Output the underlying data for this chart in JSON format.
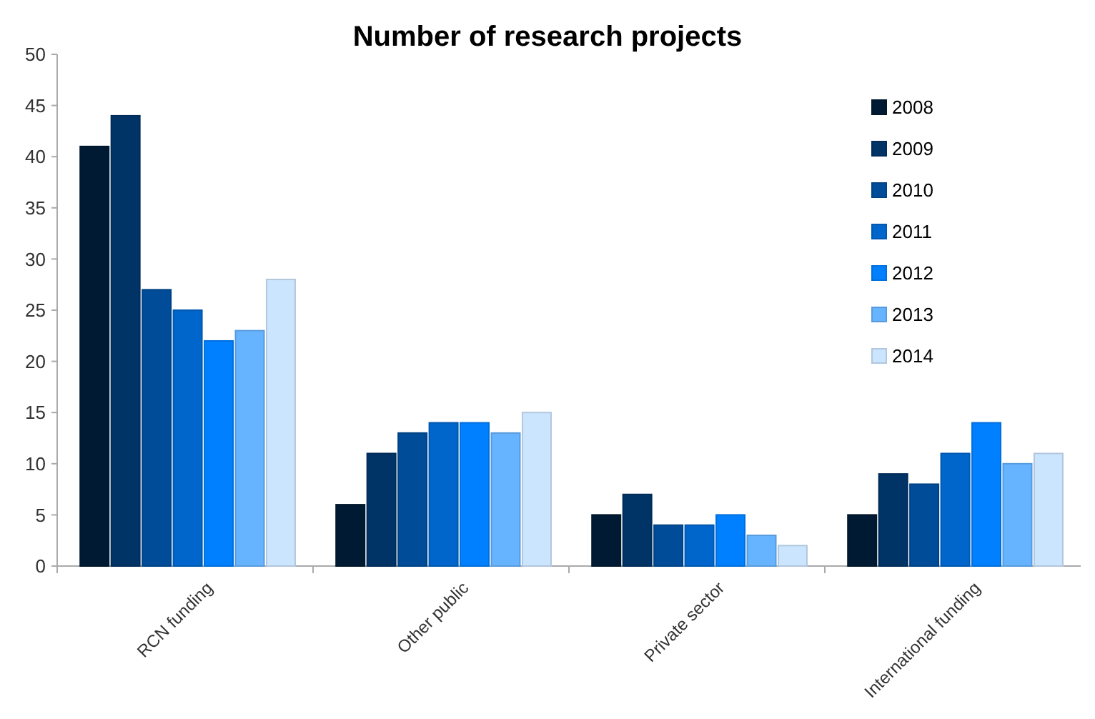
{
  "chart_data": {
    "type": "bar",
    "title": "Number of research projects",
    "categories": [
      "RCN funding",
      "Other public",
      "Private sector",
      "International funding"
    ],
    "series": [
      {
        "name": "2008",
        "color": "#001a33",
        "values": [
          41,
          6,
          5,
          5
        ]
      },
      {
        "name": "2009",
        "color": "#003366",
        "values": [
          44,
          11,
          7,
          9
        ]
      },
      {
        "name": "2010",
        "color": "#004c99",
        "values": [
          27,
          13,
          4,
          8
        ]
      },
      {
        "name": "2011",
        "color": "#0066cc",
        "values": [
          25,
          14,
          4,
          11
        ]
      },
      {
        "name": "2012",
        "color": "#0080ff",
        "values": [
          22,
          14,
          5,
          14
        ]
      },
      {
        "name": "2013",
        "color": "#66b3ff",
        "values": [
          23,
          13,
          3,
          10
        ]
      },
      {
        "name": "2014",
        "color": "#cce5ff",
        "values": [
          28,
          15,
          2,
          11
        ]
      }
    ],
    "ylim": [
      0,
      50
    ],
    "yticks": [
      0,
      5,
      10,
      15,
      20,
      25,
      30,
      35,
      40,
      45,
      50
    ],
    "grid": false,
    "legend": "top right"
  }
}
